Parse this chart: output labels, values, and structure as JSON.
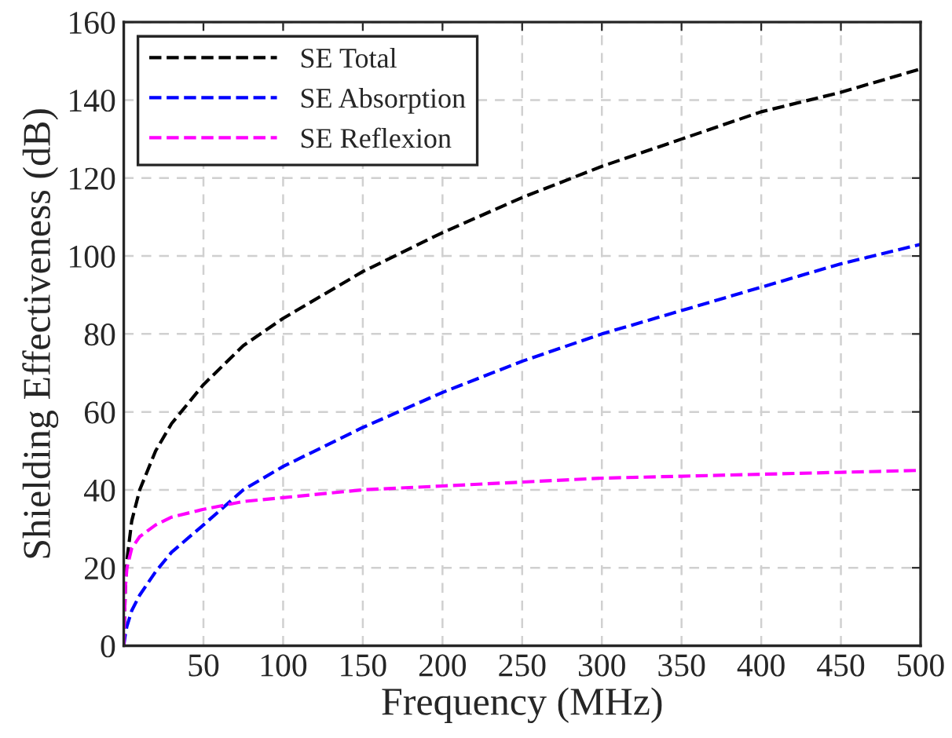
{
  "chart_data": {
    "type": "line",
    "xlabel": "Frequency (MHz)",
    "ylabel": "Shielding Effectiveness (dB)",
    "xlim": [
      0,
      500
    ],
    "xticks": [
      50,
      100,
      150,
      200,
      250,
      300,
      350,
      400,
      450,
      500
    ],
    "ylim": [
      0,
      160
    ],
    "yticks": [
      0,
      20,
      40,
      60,
      80,
      100,
      120,
      140,
      160
    ],
    "grid": true,
    "legend": "top left",
    "line_style": "dashed",
    "marker": "none",
    "x": [
      0,
      1,
      2,
      5,
      10,
      20,
      30,
      50,
      75,
      100,
      150,
      200,
      250,
      300,
      350,
      400,
      450,
      500
    ],
    "series": [
      {
        "name": "SE Total",
        "color": "#000000",
        "values": [
          0,
          15,
          22,
          32,
          40,
          50,
          57,
          67,
          77,
          84,
          96,
          106,
          115,
          123,
          130,
          137,
          142,
          148
        ]
      },
      {
        "name": "SE Absorption",
        "color": "#0000ff",
        "values": [
          0,
          3,
          5,
          9,
          13,
          19,
          24,
          31,
          40,
          46,
          56,
          65,
          73,
          80,
          86,
          92,
          98,
          103
        ]
      },
      {
        "name": "SE Reflexion",
        "color": "#ff00ff",
        "values": [
          0,
          15,
          20,
          25,
          28,
          31,
          33,
          35,
          37,
          38,
          40,
          41,
          42,
          43,
          43.5,
          44,
          44.5,
          45
        ]
      }
    ]
  }
}
